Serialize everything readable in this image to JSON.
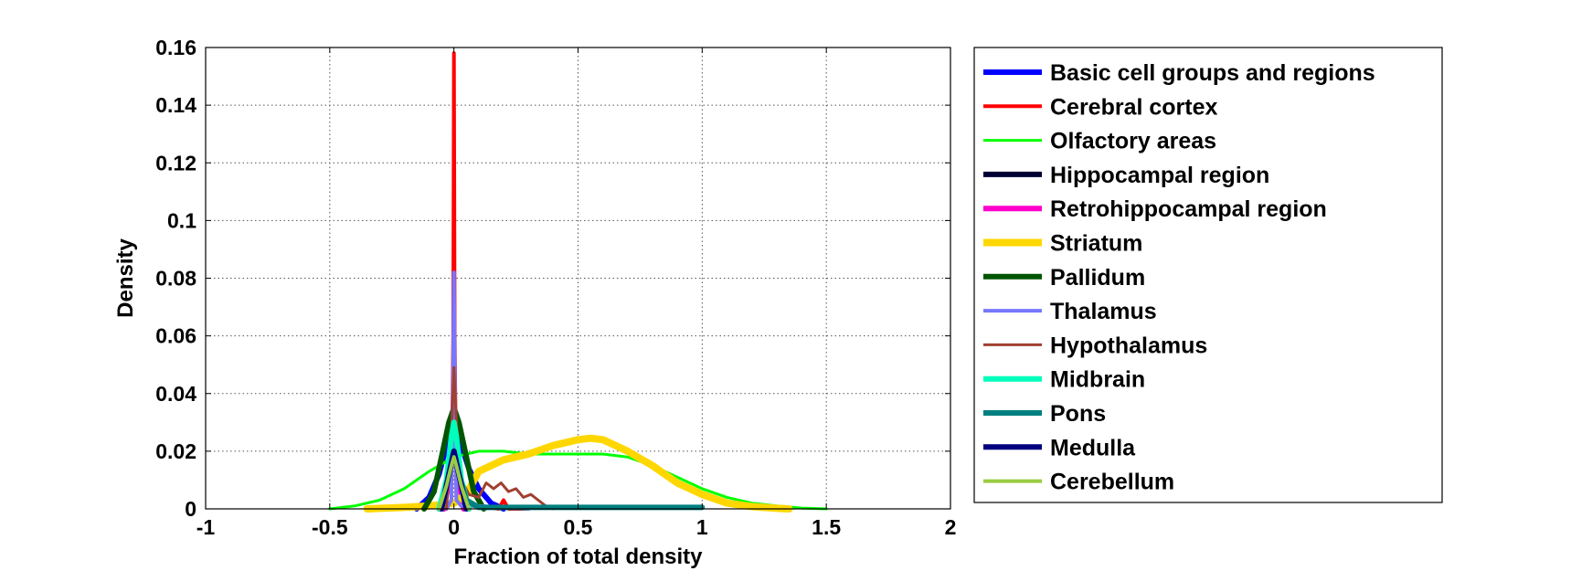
{
  "chart_data": {
    "type": "line",
    "title": "",
    "xlabel": "Fraction of total density",
    "ylabel": "Density",
    "xlim": [
      -1,
      2
    ],
    "ylim": [
      0,
      0.16
    ],
    "xticks": [
      -1,
      -0.5,
      0,
      0.5,
      1,
      1.5,
      2
    ],
    "xtick_labels": [
      "-1",
      "-0.5",
      "0",
      "0.5",
      "1",
      "1.5",
      "2"
    ],
    "yticks": [
      0,
      0.02,
      0.04,
      0.06,
      0.08,
      0.1,
      0.12,
      0.14,
      0.16
    ],
    "ytick_labels": [
      "0",
      "0.02",
      "0.04",
      "0.06",
      "0.08",
      "0.1",
      "0.12",
      "0.14",
      "0.16"
    ],
    "grid": true,
    "legend_position": "outside-right",
    "series": [
      {
        "name": "Basic cell groups and regions",
        "color": "#0000ff",
        "width": 6,
        "x": [
          -0.15,
          -0.1,
          -0.06,
          -0.03,
          -0.01,
          0,
          0.01,
          0.03,
          0.06,
          0.1,
          0.15,
          0.2
        ],
        "y": [
          0,
          0.004,
          0.012,
          0.022,
          0.03,
          0.033,
          0.03,
          0.022,
          0.014,
          0.007,
          0.002,
          0
        ]
      },
      {
        "name": "Cerebral cortex",
        "color": "#ff0000",
        "width": 4,
        "x": [
          -0.03,
          -0.01,
          -0.003,
          0,
          0.003,
          0.01,
          0.03,
          0.1,
          0.18,
          0.2,
          0.22,
          0.3
        ],
        "y": [
          0,
          0.003,
          0.06,
          0.158,
          0.06,
          0.003,
          0.001,
          0.001,
          0,
          0.003,
          0,
          0
        ]
      },
      {
        "name": "Olfactory areas",
        "color": "#00ff00",
        "width": 3,
        "x": [
          -0.5,
          -0.4,
          -0.3,
          -0.2,
          -0.1,
          0,
          0.1,
          0.2,
          0.3,
          0.4,
          0.5,
          0.6,
          0.7,
          0.8,
          0.9,
          1.0,
          1.1,
          1.2,
          1.3,
          1.4,
          1.5
        ],
        "y": [
          0,
          0.001,
          0.003,
          0.007,
          0.013,
          0.018,
          0.02,
          0.02,
          0.019,
          0.019,
          0.019,
          0.019,
          0.018,
          0.015,
          0.011,
          0.007,
          0.004,
          0.002,
          0.001,
          0.0003,
          0
        ]
      },
      {
        "name": "Hippocampal region",
        "color": "#000033",
        "width": 6,
        "x": [
          -0.06,
          -0.03,
          -0.01,
          0,
          0.01,
          0.03,
          0.06
        ],
        "y": [
          0,
          0.008,
          0.02,
          0.024,
          0.02,
          0.008,
          0
        ]
      },
      {
        "name": "Retrohippocampal region",
        "color": "#ff00cc",
        "width": 6,
        "x": [
          -0.04,
          -0.02,
          -0.005,
          0,
          0.005,
          0.02,
          0.04
        ],
        "y": [
          0,
          0.01,
          0.03,
          0.035,
          0.03,
          0.01,
          0
        ]
      },
      {
        "name": "Striatum",
        "color": "#ffd700",
        "width": 8,
        "x": [
          -0.35,
          -0.2,
          -0.1,
          0,
          0.05,
          0.1,
          0.2,
          0.3,
          0.4,
          0.5,
          0.55,
          0.6,
          0.7,
          0.8,
          0.9,
          1.0,
          1.1,
          1.2,
          1.3,
          1.35
        ],
        "y": [
          0,
          0.0005,
          0.001,
          0.002,
          0.005,
          0.013,
          0.017,
          0.019,
          0.022,
          0.024,
          0.0245,
          0.024,
          0.02,
          0.015,
          0.009,
          0.005,
          0.002,
          0.0008,
          0.0002,
          0
        ]
      },
      {
        "name": "Pallidum",
        "color": "#005500",
        "width": 6,
        "x": [
          -0.12,
          -0.08,
          -0.05,
          -0.02,
          0,
          0.02,
          0.05,
          0.08,
          0.12
        ],
        "y": [
          0,
          0.006,
          0.018,
          0.03,
          0.035,
          0.03,
          0.018,
          0.006,
          0
        ]
      },
      {
        "name": "Thalamus",
        "color": "#7777ff",
        "width": 4,
        "x": [
          -0.03,
          -0.01,
          -0.003,
          0,
          0.003,
          0.01,
          0.03,
          0.1,
          0.2,
          0.3
        ],
        "y": [
          0,
          0.003,
          0.05,
          0.082,
          0.05,
          0.003,
          0.001,
          0.001,
          0.0005,
          0
        ]
      },
      {
        "name": "Hypothalamus",
        "color": "#a04030",
        "width": 3,
        "x": [
          -0.03,
          -0.01,
          0,
          0.01,
          0.03,
          0.06,
          0.1,
          0.13,
          0.16,
          0.19,
          0.22,
          0.25,
          0.28,
          0.31,
          0.34,
          0.37,
          0.4
        ],
        "y": [
          0,
          0.025,
          0.049,
          0.03,
          0.01,
          0.005,
          0.004,
          0.009,
          0.007,
          0.009,
          0.006,
          0.007,
          0.004,
          0.005,
          0.003,
          0.001,
          0
        ]
      },
      {
        "name": "Midbrain",
        "color": "#00ffbb",
        "width": 6,
        "x": [
          -0.06,
          -0.03,
          -0.01,
          0,
          0.01,
          0.03,
          0.06
        ],
        "y": [
          0,
          0.01,
          0.025,
          0.03,
          0.025,
          0.01,
          0
        ]
      },
      {
        "name": "Pons",
        "color": "#008080",
        "width": 6,
        "x": [
          -0.05,
          -0.02,
          0,
          0.02,
          0.05,
          0.1,
          0.3,
          0.5,
          0.7,
          1.0
        ],
        "y": [
          0,
          0.012,
          0.02,
          0.012,
          0.003,
          0.0005,
          0.0005,
          0.0005,
          0.0005,
          0.0005
        ]
      },
      {
        "name": "Medulla",
        "color": "#000080",
        "width": 6,
        "x": [
          -0.05,
          -0.02,
          0,
          0.02,
          0.05
        ],
        "y": [
          0,
          0.012,
          0.02,
          0.012,
          0
        ]
      },
      {
        "name": "Cerebellum",
        "color": "#99cc44",
        "width": 4,
        "x": [
          -0.06,
          -0.03,
          -0.01,
          0,
          0.01,
          0.03,
          0.06
        ],
        "y": [
          0,
          0.008,
          0.015,
          0.018,
          0.015,
          0.008,
          0
        ]
      }
    ]
  }
}
